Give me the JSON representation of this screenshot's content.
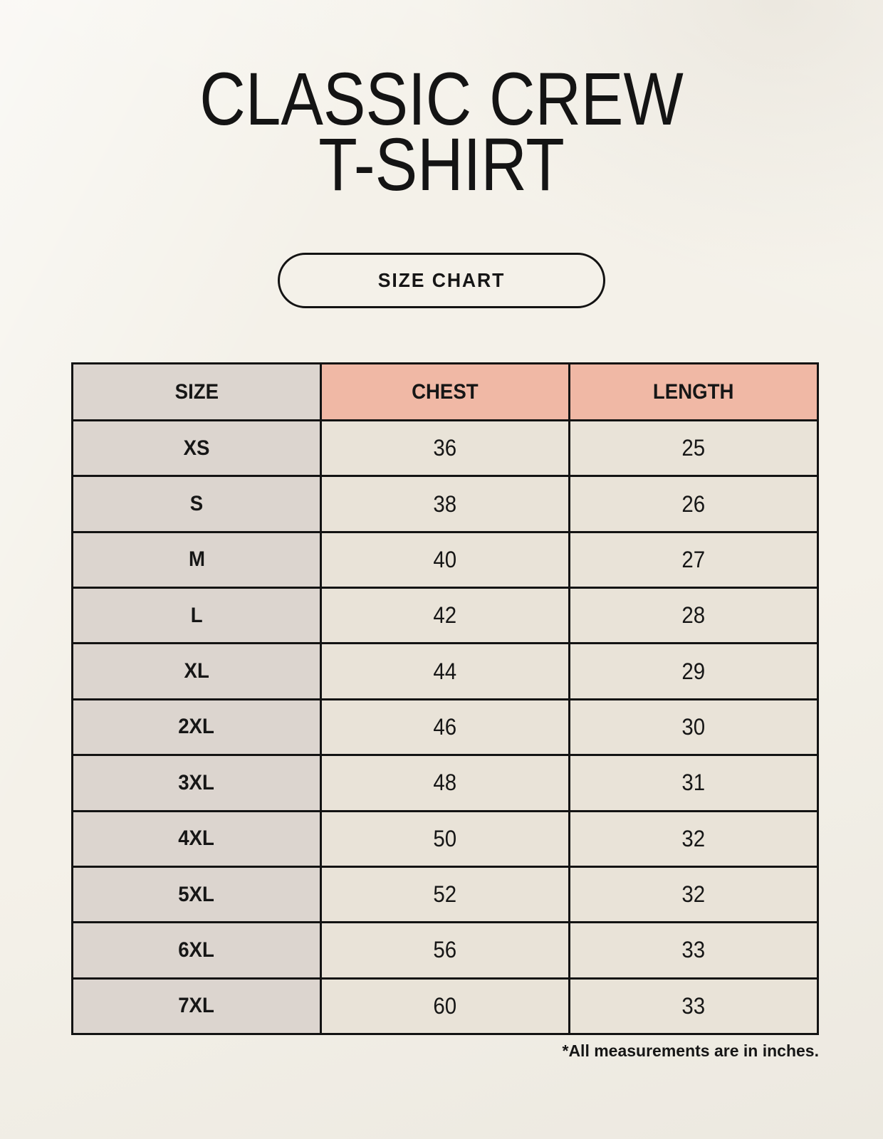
{
  "header": {
    "title_line1": "CLASSIC CREW",
    "title_line2": "T-SHIRT",
    "badge_label": "SIZE CHART"
  },
  "table": {
    "headers": {
      "size": "SIZE",
      "chest": "CHEST",
      "length": "LENGTH"
    },
    "rows": [
      {
        "size": "XS",
        "chest": "36",
        "length": "25"
      },
      {
        "size": "S",
        "chest": "38",
        "length": "26"
      },
      {
        "size": "M",
        "chest": "40",
        "length": "27"
      },
      {
        "size": "L",
        "chest": "42",
        "length": "28"
      },
      {
        "size": "XL",
        "chest": "44",
        "length": "29"
      },
      {
        "size": "2XL",
        "chest": "46",
        "length": "30"
      },
      {
        "size": "3XL",
        "chest": "48",
        "length": "31"
      },
      {
        "size": "4XL",
        "chest": "50",
        "length": "32"
      },
      {
        "size": "5XL",
        "chest": "52",
        "length": "32"
      },
      {
        "size": "6XL",
        "chest": "56",
        "length": "33"
      },
      {
        "size": "7XL",
        "chest": "60",
        "length": "33"
      }
    ]
  },
  "footer": {
    "note": "*All measurements are in inches."
  },
  "colors": {
    "page_background": "#F4F1E9",
    "size_column": "#DCD5CF",
    "header_accent": "#F0B8A5",
    "data_cell": "#E9E3D8",
    "table_border": "#131313",
    "text": "#161616"
  },
  "chart_data": {
    "type": "table",
    "title": "CLASSIC CREW T-SHIRT",
    "subtitle": "SIZE CHART",
    "columns": [
      "SIZE",
      "CHEST",
      "LENGTH"
    ],
    "rows": [
      [
        "XS",
        36,
        25
      ],
      [
        "S",
        38,
        26
      ],
      [
        "M",
        40,
        27
      ],
      [
        "L",
        42,
        28
      ],
      [
        "XL",
        44,
        29
      ],
      [
        "2XL",
        46,
        30
      ],
      [
        "3XL",
        48,
        31
      ],
      [
        "4XL",
        50,
        32
      ],
      [
        "5XL",
        52,
        32
      ],
      [
        "6XL",
        56,
        33
      ],
      [
        "7XL",
        60,
        33
      ]
    ],
    "units": "inches",
    "note": "*All measurements are in inches."
  }
}
